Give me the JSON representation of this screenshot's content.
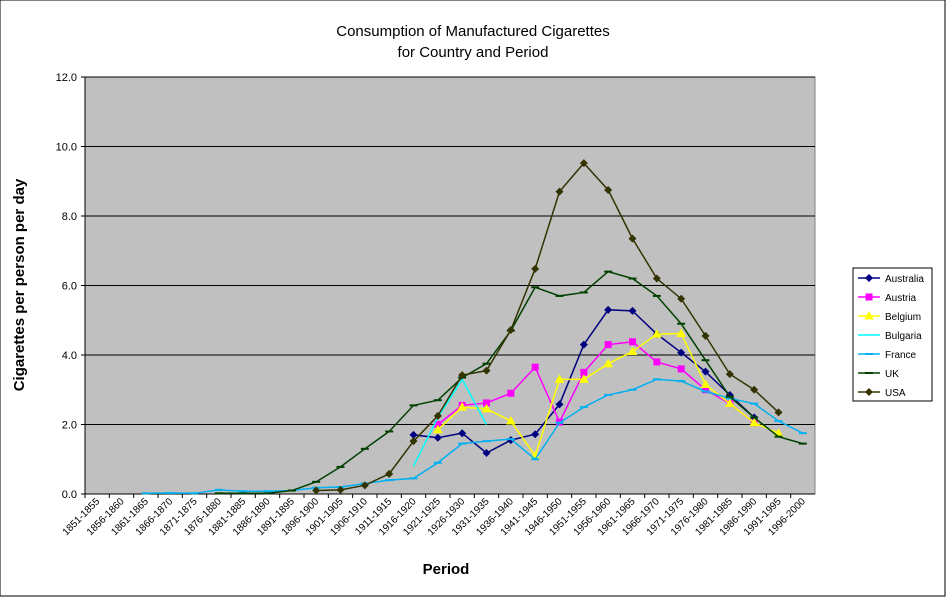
{
  "chart_data": {
    "type": "line",
    "title": "Consumption of Manufactured Cigarettes",
    "subtitle": "for Country and Period",
    "x_label": "Period",
    "y_label": "Cigarettes per person per day",
    "categories": [
      "1851-1855",
      "1856-1860",
      "1861-1865",
      "1866-1870",
      "1871-1875",
      "1876-1880",
      "1881-1885",
      "1886-1890",
      "1891-1895",
      "1896-1900",
      "1901-1905",
      "1906-1910",
      "1911-1915",
      "1916-1920",
      "1921-1925",
      "1926-1930",
      "1931-1935",
      "1936-1940",
      "1941-1945",
      "1946-1950",
      "1951-1955",
      "1956-1960",
      "1961-1965",
      "1966-1970",
      "1971-1975",
      "1976-1980",
      "1981-1985",
      "1986-1990",
      "1991-1995",
      "1996-2000"
    ],
    "ylim": [
      0,
      12
    ],
    "yticks": [
      {
        "value": 0,
        "label": "0.0"
      },
      {
        "value": 2,
        "label": "2.0"
      },
      {
        "value": 4,
        "label": "4.0"
      },
      {
        "value": 6,
        "label": "6.0"
      },
      {
        "value": 8,
        "label": "8.0"
      },
      {
        "value": 10,
        "label": "10.0"
      },
      {
        "value": 12,
        "label": "12.0"
      }
    ],
    "grid": true,
    "legend": "right",
    "series": [
      {
        "name": "Australia",
        "color": "#000080",
        "marker": "diamond",
        "values": [
          null,
          null,
          null,
          null,
          null,
          null,
          null,
          null,
          null,
          null,
          null,
          null,
          null,
          1.7,
          1.62,
          1.75,
          1.18,
          1.55,
          1.72,
          2.58,
          4.3,
          5.3,
          5.27,
          4.6,
          4.07,
          3.52,
          2.85,
          2.2,
          null,
          null
        ]
      },
      {
        "name": "Austria",
        "color": "#FF00FF",
        "marker": "square",
        "values": [
          null,
          null,
          null,
          null,
          null,
          null,
          null,
          null,
          null,
          null,
          null,
          null,
          null,
          null,
          2.0,
          2.55,
          2.62,
          2.9,
          3.65,
          2.07,
          3.5,
          4.3,
          4.38,
          3.8,
          3.6,
          3.0,
          2.6,
          2.05,
          null,
          null
        ]
      },
      {
        "name": "Belgium",
        "color": "#FFFF00",
        "marker": "triangle",
        "values": [
          null,
          null,
          null,
          null,
          null,
          null,
          null,
          null,
          null,
          null,
          null,
          null,
          null,
          null,
          1.85,
          2.5,
          2.45,
          2.1,
          1.1,
          3.3,
          3.3,
          3.75,
          4.1,
          4.6,
          4.62,
          3.15,
          2.6,
          2.05,
          1.75,
          null
        ]
      },
      {
        "name": "Bulgaria",
        "color": "#00FFFF",
        "marker": "none",
        "values": [
          null,
          null,
          null,
          null,
          null,
          null,
          null,
          null,
          null,
          null,
          null,
          null,
          null,
          0.8,
          2.2,
          3.3,
          2.0,
          null,
          null,
          null,
          null,
          null,
          null,
          null,
          null,
          null,
          null,
          null,
          null,
          null
        ]
      },
      {
        "name": "France",
        "color": "#00B0F0",
        "marker": "dash",
        "values": [
          null,
          null,
          0.02,
          0.03,
          0.02,
          0.12,
          0.08,
          0.08,
          0.1,
          0.18,
          0.2,
          0.3,
          0.4,
          0.45,
          0.9,
          1.45,
          1.52,
          1.58,
          1.0,
          2.05,
          2.5,
          2.85,
          3.0,
          3.3,
          3.25,
          2.95,
          2.75,
          2.6,
          2.1,
          1.75
        ]
      },
      {
        "name": "UK",
        "color": "#004000",
        "marker": "dash",
        "values": [
          null,
          null,
          null,
          null,
          null,
          0.02,
          0.02,
          0.02,
          0.1,
          0.35,
          0.78,
          1.3,
          1.8,
          2.55,
          2.7,
          3.35,
          3.75,
          4.7,
          5.95,
          5.7,
          5.8,
          6.4,
          6.2,
          5.7,
          4.9,
          3.85,
          2.8,
          2.2,
          1.65,
          1.45
        ]
      },
      {
        "name": "USA",
        "color": "#333300",
        "marker": "diamond",
        "values": [
          null,
          null,
          null,
          null,
          null,
          null,
          null,
          null,
          null,
          0.1,
          0.12,
          0.25,
          0.58,
          1.52,
          2.25,
          3.42,
          3.55,
          4.72,
          6.48,
          8.7,
          9.52,
          8.75,
          7.35,
          6.2,
          5.62,
          4.55,
          3.45,
          3.0,
          2.35,
          null
        ]
      }
    ]
  }
}
